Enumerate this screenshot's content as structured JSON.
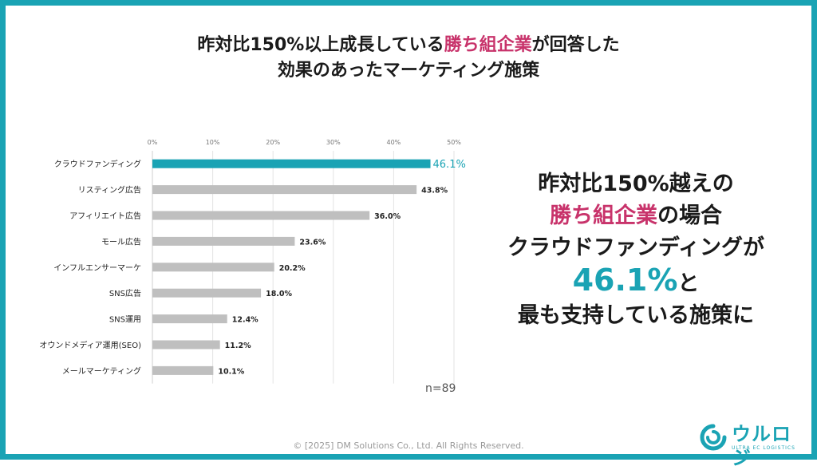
{
  "title": {
    "line1_pre": "昨対比150%以上成長している",
    "line1_highlight": "勝ち組企業",
    "line1_post": "が回答した",
    "line2": "効果のあったマーケティング施策"
  },
  "chart_data": {
    "type": "bar",
    "orientation": "horizontal",
    "categories": [
      "クラウドファンディング",
      "リスティング広告",
      "アフィリエイト広告",
      "モール広告",
      "インフルエンサーマーケ",
      "SNS広告",
      "SNS運用",
      "オウンドメディア運用(SEO)",
      "メールマーケティング"
    ],
    "values": [
      46.1,
      43.8,
      36.0,
      23.6,
      20.2,
      18.0,
      12.4,
      11.2,
      10.1
    ],
    "value_labels": [
      "46.1%",
      "43.8%",
      "36.0%",
      "23.6%",
      "20.2%",
      "18.0%",
      "12.4%",
      "11.2%",
      "10.1%"
    ],
    "xlim": [
      0,
      50
    ],
    "x_ticks": [
      0,
      10,
      20,
      30,
      40,
      50
    ],
    "x_tick_labels": [
      "0%",
      "10%",
      "20%",
      "30%",
      "40%",
      "50%"
    ],
    "grid": true,
    "highlight_index": 0,
    "colors": {
      "highlight": "#1aa3b4",
      "default": "#bfbfbf"
    },
    "note": "n=89"
  },
  "callout": {
    "line1": "昨対比150%越えの",
    "line2_highlight": "勝ち組企業",
    "line2_post": "の場合",
    "line3": "クラウドファンディングが",
    "line4_big": "46.1%",
    "line4_post": "と",
    "line5": "最も支持している施策に"
  },
  "footer": {
    "copyright": "© [2025] DM Solutions Co., Ltd. All Rights Reserved."
  },
  "logo": {
    "text": "ウルロジ",
    "subtext": "ULTRA EC LOGISTICS",
    "icon": "ururoji-logo-icon"
  },
  "colors": {
    "accent": "#1aa3b4",
    "pink": "#c8336b",
    "border": "#1aa3b4"
  }
}
